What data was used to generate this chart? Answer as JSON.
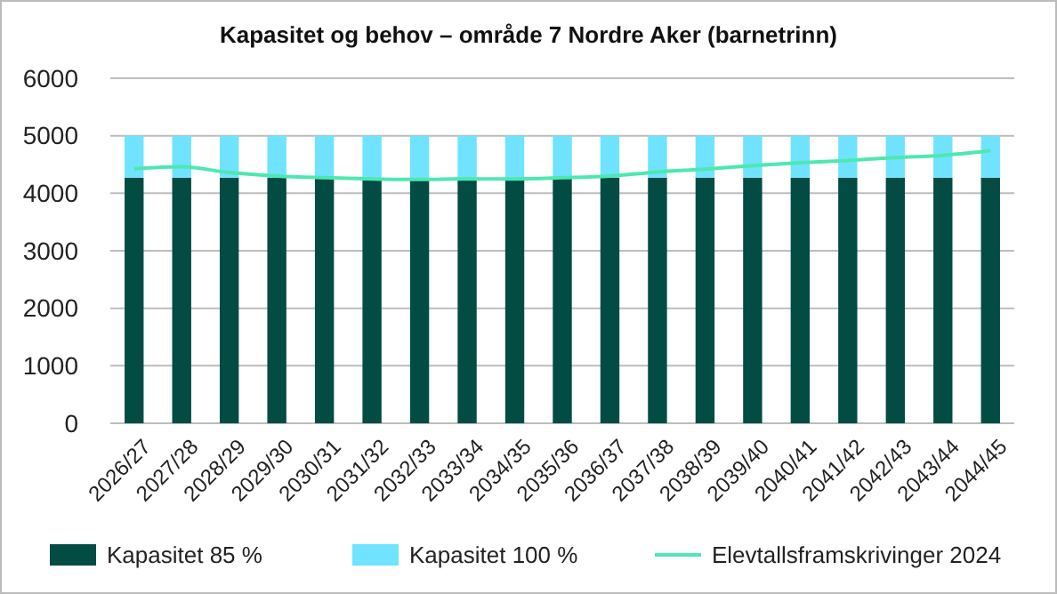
{
  "chart_data": {
    "type": "bar",
    "title": "Kapasitet og behov – område 7 Nordre Aker (barnetrinn)",
    "categories": [
      "2026/27",
      "2027/28",
      "2028/29",
      "2029/30",
      "2030/31",
      "2031/32",
      "2032/33",
      "2033/34",
      "2034/35",
      "2035/36",
      "2036/37",
      "2037/38",
      "2038/39",
      "2039/40",
      "2040/41",
      "2041/42",
      "2042/43",
      "2043/44",
      "2044/45"
    ],
    "stacked": true,
    "series": [
      {
        "name": "Kapasitet 85 %",
        "color": "#024c44",
        "values": [
          4270,
          4270,
          4270,
          4270,
          4260,
          4230,
          4230,
          4230,
          4230,
          4270,
          4270,
          4270,
          4270,
          4270,
          4270,
          4270,
          4270,
          4270,
          4270
        ]
      },
      {
        "name": "Kapasitet 100 %",
        "color": "#6fe3ff",
        "values": [
          730,
          730,
          730,
          730,
          740,
          770,
          770,
          770,
          770,
          730,
          730,
          730,
          730,
          730,
          730,
          730,
          730,
          730,
          730
        ]
      },
      {
        "name": "Elevtallsframskrivinger 2024",
        "type": "line",
        "color": "#4de8b0",
        "values": [
          4425,
          4460,
          4360,
          4300,
          4270,
          4250,
          4240,
          4250,
          4250,
          4270,
          4300,
          4370,
          4420,
          4480,
          4530,
          4570,
          4620,
          4660,
          4740
        ]
      }
    ],
    "ylim": [
      0,
      6000
    ],
    "yticks": [
      0,
      1000,
      2000,
      3000,
      4000,
      5000,
      6000
    ],
    "grid": "y",
    "legend": "bottom",
    "marker": "none"
  }
}
